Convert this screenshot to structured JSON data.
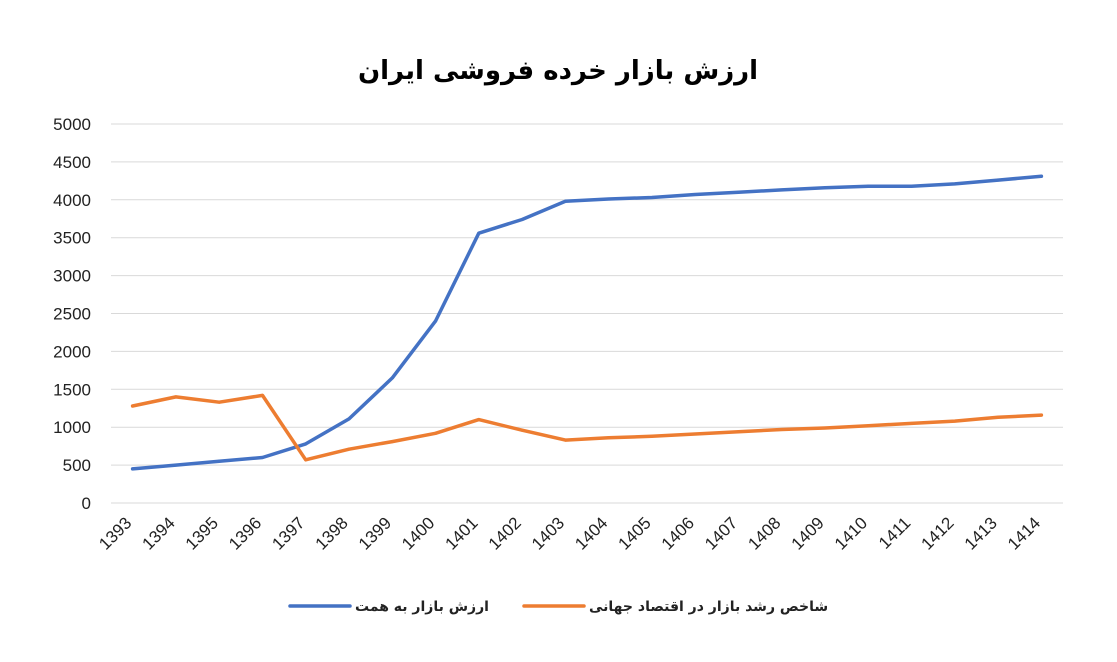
{
  "chart_data": {
    "type": "line",
    "title": "ارزش بازار خرده فروشی ایران",
    "xlabel": "",
    "ylabel": "",
    "categories": [
      "1393",
      "1394",
      "1395",
      "1396",
      "1397",
      "1398",
      "1399",
      "1400",
      "1401",
      "1402",
      "1403",
      "1404",
      "1405",
      "1406",
      "1407",
      "1408",
      "1409",
      "1410",
      "1411",
      "1412",
      "1413",
      "1414"
    ],
    "ylim": [
      0,
      5000
    ],
    "yticks": [
      0,
      500,
      1000,
      1500,
      2000,
      2500,
      3000,
      3500,
      4000,
      4500,
      5000
    ],
    "grid": true,
    "legend_position": "bottom",
    "series": [
      {
        "name": "ارزش بازار به همت",
        "color": "#4472C4",
        "values": [
          450,
          500,
          550,
          600,
          780,
          1110,
          1650,
          2400,
          3560,
          3740,
          3980,
          4010,
          4030,
          4070,
          4100,
          4130,
          4160,
          4180,
          4180,
          4210,
          4260,
          4310
        ]
      },
      {
        "name": "شاخص رشد بازار در اقتصاد جهانی",
        "color": "#ED7D31",
        "values": [
          1280,
          1400,
          1330,
          1420,
          570,
          710,
          810,
          920,
          1100,
          960,
          830,
          860,
          880,
          910,
          940,
          970,
          990,
          1020,
          1050,
          1080,
          1130,
          1160
        ]
      }
    ]
  }
}
